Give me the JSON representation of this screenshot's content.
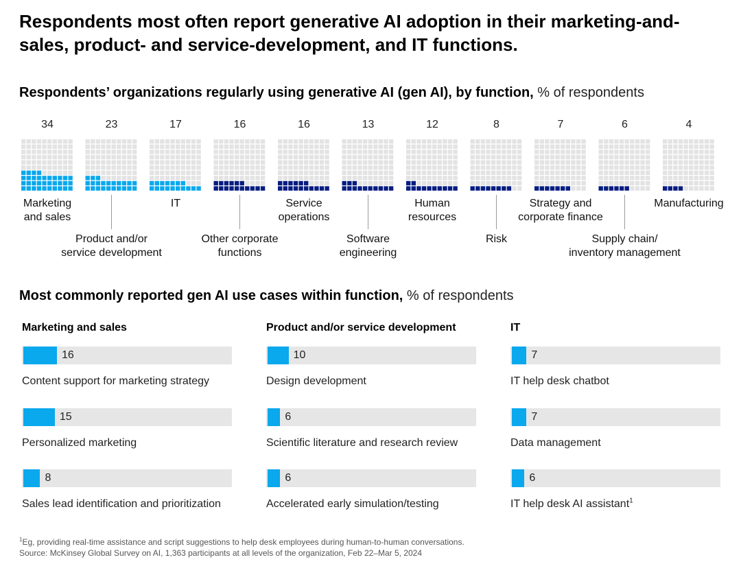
{
  "title": "Respondents most often report generative AI adoption in their marketing-and-sales, product- and service-development, and IT functions.",
  "section1": {
    "title": "Respondents’ organizations regularly using generative AI (gen AI), by function,",
    "unit": "% of respondents"
  },
  "section2": {
    "title": "Most commonly reported gen AI use cases within function,",
    "unit": "% of respondents"
  },
  "colors": {
    "light_blue": "#0aa8ec",
    "dark_blue": "#051c80",
    "grey_cell": "#e3e3e3",
    "track": "#e6e6e6"
  },
  "chart_data": [
    {
      "type": "waffle",
      "title": "Respondents’ organizations regularly using generative AI (gen AI), by function",
      "unit": "% of respondents",
      "categories": [
        "Marketing and sales",
        "Product and/or service development",
        "IT",
        "Other corporate functions",
        "Service operations",
        "Software engineering",
        "Human resources",
        "Risk",
        "Strategy and corporate finance",
        "Supply chain/ inventory management",
        "Manufacturing"
      ],
      "values": [
        34,
        23,
        17,
        16,
        16,
        13,
        12,
        8,
        7,
        6,
        4
      ],
      "value_labels": [
        "34",
        "23",
        "17",
        "16",
        "16",
        "13",
        "12",
        "8",
        "7",
        "6",
        "4"
      ],
      "label_lines": [
        [
          "Marketing",
          "and sales"
        ],
        [
          "Product and/or",
          "service development"
        ],
        [
          "IT"
        ],
        [
          "Other corporate",
          "functions"
        ],
        [
          "Service",
          "operations"
        ],
        [
          "Software",
          "engineering"
        ],
        [
          "Human",
          "resources"
        ],
        [
          "Risk"
        ],
        [
          "Strategy and",
          "corporate finance"
        ],
        [
          "Supply chain/",
          "inventory management"
        ],
        [
          "Manufacturing"
        ]
      ],
      "label_rows": [
        "upper",
        "lower",
        "upper",
        "lower",
        "upper",
        "lower",
        "upper",
        "lower",
        "upper",
        "lower",
        "upper"
      ],
      "colors": [
        "light_blue",
        "light_blue",
        "light_blue",
        "dark_blue",
        "dark_blue",
        "dark_blue",
        "dark_blue",
        "dark_blue",
        "dark_blue",
        "dark_blue",
        "dark_blue"
      ],
      "grid": "10x10"
    },
    {
      "type": "bar",
      "orientation": "horizontal",
      "title": "Most commonly reported gen AI use cases within function",
      "unit": "% of respondents",
      "xlim": [
        0,
        100
      ],
      "groups": [
        {
          "name": "Marketing and sales",
          "items": [
            {
              "label": "Content support for marketing strategy",
              "value": 16
            },
            {
              "label": "Personalized marketing",
              "value": 15
            },
            {
              "label": "Sales lead identification and prioritization",
              "value": 8
            }
          ]
        },
        {
          "name": "Product and/or service development",
          "items": [
            {
              "label": "Design development",
              "value": 10
            },
            {
              "label": "Scientific literature and research review",
              "value": 6
            },
            {
              "label": "Accelerated early simulation/testing",
              "value": 6
            }
          ]
        },
        {
          "name": "IT",
          "items": [
            {
              "label": "IT help desk chatbot",
              "value": 7
            },
            {
              "label": "Data management",
              "value": 7
            },
            {
              "label": "IT help desk AI assistant",
              "value": 6,
              "footnote_mark": "1"
            }
          ]
        }
      ]
    }
  ],
  "footnote": {
    "mark": "1",
    "text": "Eg, providing real-time assistance and script suggestions to help desk employees during human-to-human conversations.",
    "source": "Source: McKinsey Global Survey on AI, 1,363 participants at all levels of the organization, Feb 22–Mar 5, 2024"
  }
}
